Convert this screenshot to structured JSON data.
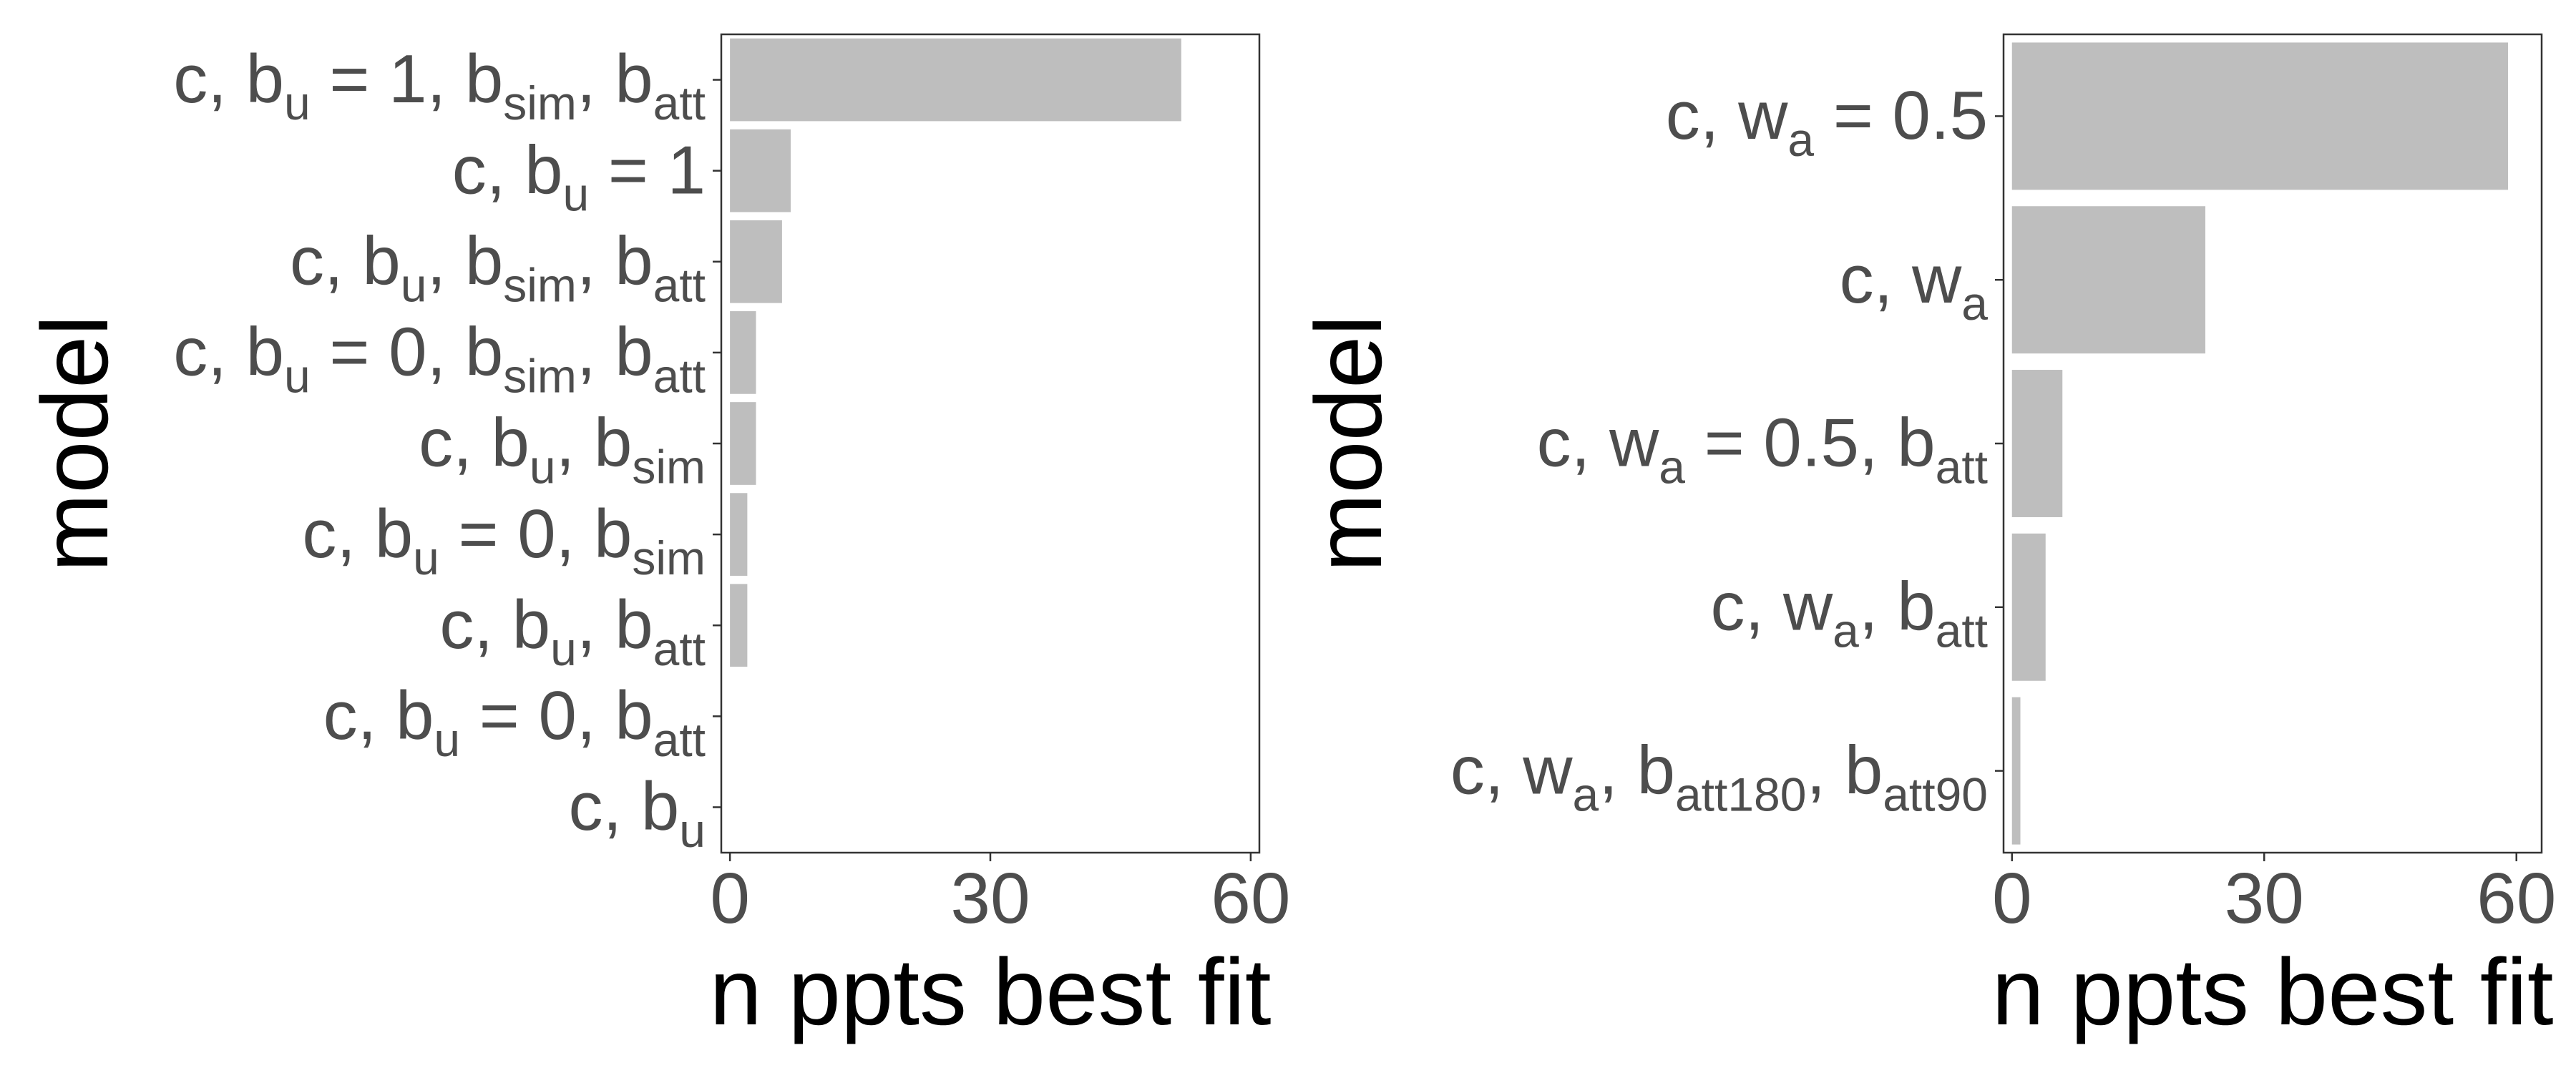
{
  "chart_data": [
    {
      "type": "bar",
      "orientation": "horizontal",
      "xlabel": "n ppts best fit",
      "ylabel": "model",
      "xlim": [
        -1,
        61
      ],
      "x_ticks": [
        "0",
        "30",
        "60"
      ],
      "x_tick_values": [
        0,
        30,
        60
      ],
      "bar_color": "#bebebe",
      "grid": false,
      "categories": [
        [
          {
            "t": "c, b"
          },
          {
            "t": "u",
            "sub": true
          },
          {
            "t": " = 1, b"
          },
          {
            "t": "sim",
            "sub": true
          },
          {
            "t": ", b"
          },
          {
            "t": "att",
            "sub": true
          }
        ],
        [
          {
            "t": "c, b"
          },
          {
            "t": "u",
            "sub": true
          },
          {
            "t": " = 1"
          }
        ],
        [
          {
            "t": "c, b"
          },
          {
            "t": "u",
            "sub": true
          },
          {
            "t": ", b"
          },
          {
            "t": "sim",
            "sub": true
          },
          {
            "t": ", b"
          },
          {
            "t": "att",
            "sub": true
          }
        ],
        [
          {
            "t": "c, b"
          },
          {
            "t": "u",
            "sub": true
          },
          {
            "t": " = 0, b"
          },
          {
            "t": "sim",
            "sub": true
          },
          {
            "t": ", b"
          },
          {
            "t": "att",
            "sub": true
          }
        ],
        [
          {
            "t": "c, b"
          },
          {
            "t": "u",
            "sub": true
          },
          {
            "t": ", b"
          },
          {
            "t": "sim",
            "sub": true
          }
        ],
        [
          {
            "t": "c, b"
          },
          {
            "t": "u",
            "sub": true
          },
          {
            "t": " = 0, b"
          },
          {
            "t": "sim",
            "sub": true
          }
        ],
        [
          {
            "t": "c, b"
          },
          {
            "t": "u",
            "sub": true
          },
          {
            "t": ", b"
          },
          {
            "t": "att",
            "sub": true
          }
        ],
        [
          {
            "t": "c, b"
          },
          {
            "t": "u",
            "sub": true
          },
          {
            "t": " = 0, b"
          },
          {
            "t": "att",
            "sub": true
          }
        ],
        [
          {
            "t": "c, b"
          },
          {
            "t": "u",
            "sub": true
          }
        ]
      ],
      "values": [
        52,
        7,
        6,
        3,
        3,
        2,
        2,
        0,
        0
      ]
    },
    {
      "type": "bar",
      "orientation": "horizontal",
      "xlabel": "n ppts best fit",
      "ylabel": "model",
      "xlim": [
        -1,
        63
      ],
      "x_ticks": [
        "0",
        "30",
        "60"
      ],
      "x_tick_values": [
        0,
        30,
        60
      ],
      "bar_color": "#bebebe",
      "grid": false,
      "categories": [
        [
          {
            "t": "c, w"
          },
          {
            "t": "a",
            "sub": true
          },
          {
            "t": " = 0.5"
          }
        ],
        [
          {
            "t": "c, w"
          },
          {
            "t": "a",
            "sub": true
          }
        ],
        [
          {
            "t": "c, w"
          },
          {
            "t": "a",
            "sub": true
          },
          {
            "t": " = 0.5, b"
          },
          {
            "t": "att",
            "sub": true
          }
        ],
        [
          {
            "t": "c, w"
          },
          {
            "t": "a",
            "sub": true
          },
          {
            "t": ", b"
          },
          {
            "t": "att",
            "sub": true
          }
        ],
        [
          {
            "t": "c, w"
          },
          {
            "t": "a",
            "sub": true
          },
          {
            "t": ", b"
          },
          {
            "t": "att180",
            "sub": true
          },
          {
            "t": ", b"
          },
          {
            "t": "att90",
            "sub": true
          }
        ]
      ],
      "values": [
        59,
        23,
        6,
        4,
        1
      ]
    }
  ]
}
